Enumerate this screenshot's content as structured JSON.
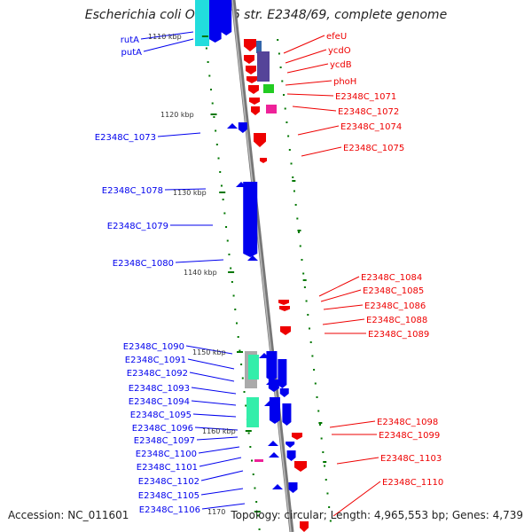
{
  "title": "Escherichia coli O127:H6 str. E2348/69, complete genome",
  "accession": "Accession: NC_011601",
  "topology": "Topology: circular; Length: 4,965,553 bp; Genes: 4,739",
  "colors": {
    "forward_gene": "#0000ee",
    "reverse_gene": "#ee0000",
    "backbone": "#888888",
    "tick": "#007700",
    "cyan": "#22dddd",
    "mint": "#33eeaa",
    "purple": "#554499",
    "green": "#22cc22",
    "magenta": "#ee2299"
  },
  "scale_ticks": [
    "1110 kbp",
    "1120 kbp",
    "1130 kbp",
    "1140 kbp",
    "1150 kbp",
    "1160 kbp",
    "1170"
  ],
  "forward_labels": [
    "rutA",
    "putA",
    "E2348C_1073",
    "E2348C_1078",
    "E2348C_1079",
    "E2348C_1080",
    "E2348C_1090",
    "E2348C_1091",
    "E2348C_1092",
    "E2348C_1093",
    "E2348C_1094",
    "E2348C_1095",
    "E2348C_1096",
    "E2348C_1097",
    "E2348C_1100",
    "E2348C_1101",
    "E2348C_1102",
    "E2348C_1105",
    "E2348C_1106"
  ],
  "reverse_labels": [
    "efeU",
    "ycdO",
    "ycdB",
    "phoH",
    "E2348C_1071",
    "E2348C_1072",
    "E2348C_1074",
    "E2348C_1075",
    "E2348C_1084",
    "E2348C_1085",
    "E2348C_1086",
    "E2348C_1088",
    "E2348C_1089",
    "E2348C_1098",
    "E2348C_1099",
    "E2348C_1103",
    "E2348C_1110"
  ]
}
